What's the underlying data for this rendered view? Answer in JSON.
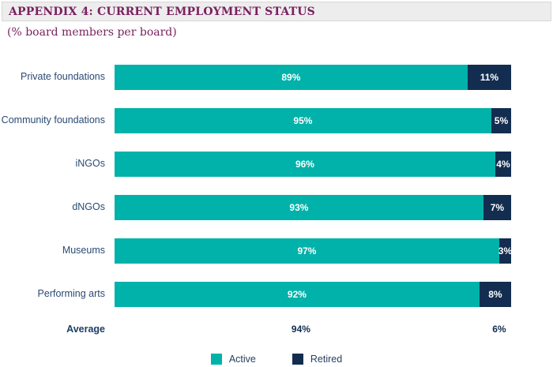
{
  "header": {
    "title": "APPENDIX 4: CURRENT EMPLOYMENT STATUS",
    "subtitle": "(% board members per board)",
    "title_color": "#7a2160",
    "band_background": "#ededed"
  },
  "chart_data": {
    "type": "bar",
    "orientation": "horizontal",
    "stacked": true,
    "title": "APPENDIX 4: CURRENT EMPLOYMENT STATUS",
    "subtitle": "(% board members per board)",
    "categories": [
      "Private foundations",
      "Community foundations",
      "iNGOs",
      "dNGOs",
      "Museums",
      "Performing arts"
    ],
    "series": [
      {
        "name": "Active",
        "color": "#00b2a9",
        "values": [
          89,
          95,
          96,
          93,
          97,
          92
        ]
      },
      {
        "name": "Retired",
        "color": "#122d4f",
        "values": [
          11,
          5,
          4,
          7,
          3,
          8
        ]
      }
    ],
    "value_suffix": "%",
    "average": {
      "label": "Average",
      "active": "94%",
      "retired": "6%"
    },
    "xlim": [
      0,
      100
    ],
    "grid": false,
    "legend_position": "bottom",
    "value_label_color": "#ffffff"
  }
}
